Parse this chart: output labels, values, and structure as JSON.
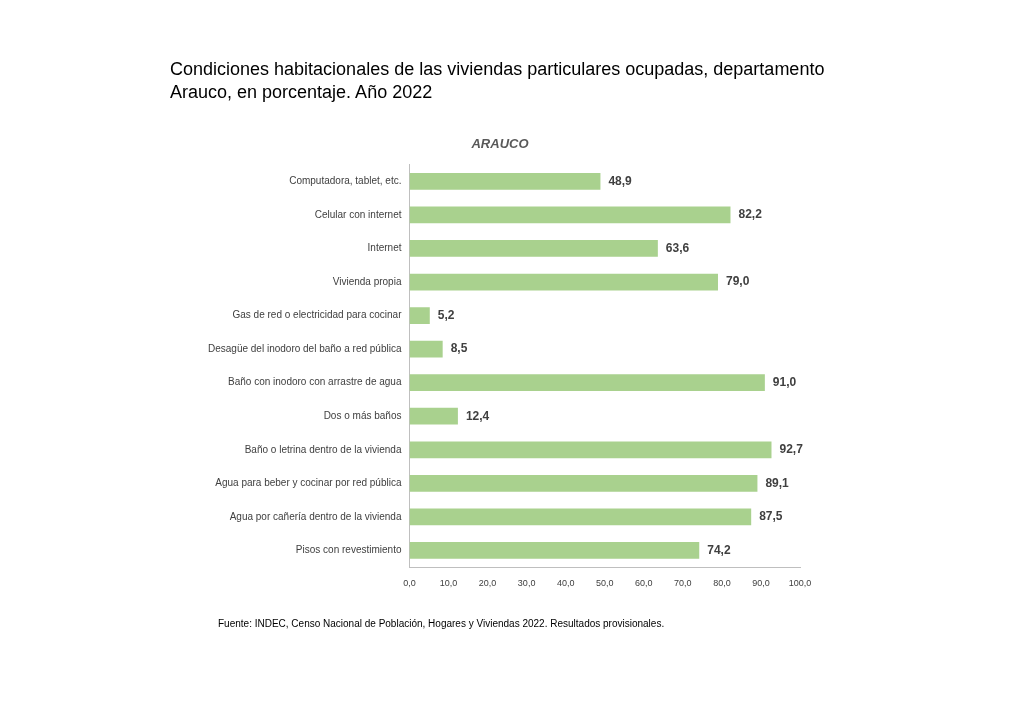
{
  "chart_data": {
    "type": "bar",
    "orientation": "horizontal",
    "title": "Condiciones habitacionales de las viviendas particulares ocupadas, departamento Arauco, en porcentaje. Año 2022",
    "subtitle": "ARAUCO",
    "categories": [
      "Computadora, tablet, etc.",
      "Celular con internet",
      "Internet",
      "Vivienda propia",
      "Gas de red o electricidad para cocinar",
      "Desagüe del inodoro del baño a red pública",
      "Baño con inodoro con arrastre de agua",
      "Dos o más baños",
      "Baño o letrina dentro de la vivienda",
      "Agua para beber y cocinar por red pública",
      "Agua por cañería dentro de la vivienda",
      "Pisos con revestimiento"
    ],
    "values": [
      48.9,
      82.2,
      63.6,
      79.0,
      5.2,
      8.5,
      91.0,
      12.4,
      92.7,
      89.1,
      87.5,
      74.2
    ],
    "value_labels": [
      "48,9",
      "82,2",
      "63,6",
      "79,0",
      "5,2",
      "8,5",
      "91,0",
      "12,4",
      "92,7",
      "89,1",
      "87,5",
      "74,2"
    ],
    "color": "#a9d18e",
    "xlim": [
      0,
      100
    ],
    "xticks": [
      {
        "value": 0,
        "label": "0,0"
      },
      {
        "value": 10,
        "label": "10,0"
      },
      {
        "value": 20,
        "label": "20,0"
      },
      {
        "value": 30,
        "label": "30,0"
      },
      {
        "value": 40,
        "label": "40,0"
      },
      {
        "value": 50,
        "label": "50,0"
      },
      {
        "value": 60,
        "label": "60,0"
      },
      {
        "value": 70,
        "label": "70,0"
      },
      {
        "value": 80,
        "label": "80,0"
      },
      {
        "value": 90,
        "label": "90,0"
      },
      {
        "value": 100,
        "label": "100,0"
      }
    ],
    "grid": false,
    "legend": false,
    "annotations": [
      "Fuente: INDEC, Censo Nacional de Población, Hogares y Viviendas 2022. Resultados provisionales."
    ]
  }
}
